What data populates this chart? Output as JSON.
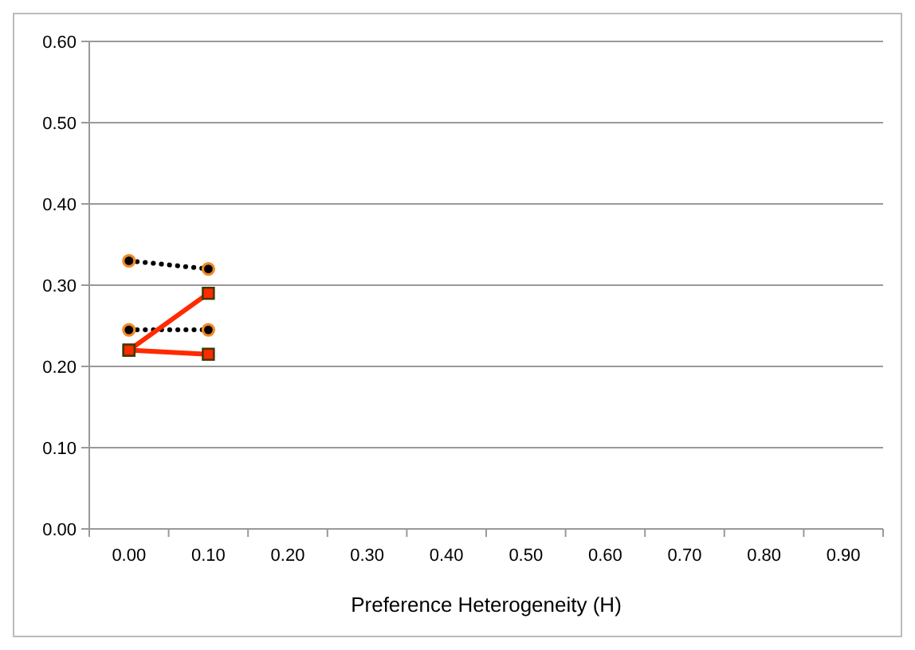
{
  "chart_data": {
    "type": "line",
    "xlabel": "Preference Heterogeneity (H)",
    "categories": [
      "0.00",
      "0.10",
      "0.20",
      "0.30",
      "0.40",
      "0.50",
      "0.60",
      "0.70",
      "0.80",
      "0.90"
    ],
    "ylim": [
      0,
      0.6
    ],
    "yticks": [
      {
        "value": 0,
        "label": "0.00"
      },
      {
        "value": 0.1,
        "label": "0.10"
      },
      {
        "value": 0.2,
        "label": "0.20"
      },
      {
        "value": 0.3,
        "label": "0.30"
      },
      {
        "value": 0.4,
        "label": "0.40"
      },
      {
        "value": 0.5,
        "label": "0.50"
      },
      {
        "value": 0.6,
        "label": "0.60"
      }
    ],
    "grid": "y",
    "series": [
      {
        "color": "#000000",
        "values": [
          0.33,
          0.32,
          null,
          null,
          null,
          null,
          null,
          null,
          null,
          null
        ],
        "marker": "circle",
        "line_style": "dotted"
      },
      {
        "color": "#000000",
        "values": [
          0.245,
          0.245,
          null,
          null,
          null,
          null,
          null,
          null,
          null,
          null
        ],
        "marker": "circle",
        "line_style": "dotted"
      },
      {
        "color": "#ff2a00",
        "values": [
          0.22,
          0.29,
          null,
          null,
          null,
          null,
          null,
          null,
          null,
          null
        ],
        "marker": "square",
        "line_style": "solid"
      },
      {
        "color": "#ff2a00",
        "values": [
          0.22,
          0.215,
          null,
          null,
          null,
          null,
          null,
          null,
          null,
          null
        ],
        "marker": "square",
        "line_style": "solid"
      }
    ]
  }
}
